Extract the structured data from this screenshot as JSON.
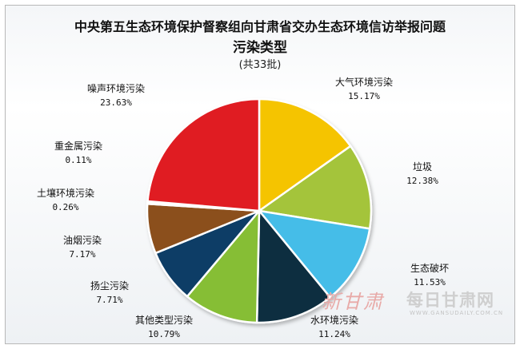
{
  "chart_data": {
    "type": "pie",
    "title": "中央第五生态环境保护督察组向甘肃省交办生态环境信访举报问题",
    "subtitle": "污染类型",
    "note": "(共33批)",
    "slices": [
      {
        "label": "大气环境污染",
        "pct_text": "15.17%",
        "value": 15.17,
        "color": "#f5c400"
      },
      {
        "label": "垃圾",
        "pct_text": "12.38%",
        "value": 12.38,
        "color": "#a4c43b"
      },
      {
        "label": "生态破坏",
        "pct_text": "11.53%",
        "value": 11.53,
        "color": "#45bde8"
      },
      {
        "label": "水环境污染",
        "pct_text": "11.24%",
        "value": 11.24,
        "color": "#0d2f40"
      },
      {
        "label": "其他类型污染",
        "pct_text": "10.79%",
        "value": 10.79,
        "color": "#86be34"
      },
      {
        "label": "扬尘污染",
        "pct_text": "7.71%",
        "value": 7.71,
        "color": "#0b3c66"
      },
      {
        "label": "油烟污染",
        "pct_text": "7.17%",
        "value": 7.17,
        "color": "#8b4f1c"
      },
      {
        "label": "土壤环境污染",
        "pct_text": "0.26%",
        "value": 0.26,
        "color": "#d93a3a"
      },
      {
        "label": "重金属污染",
        "pct_text": "0.11%",
        "value": 0.11,
        "color": "#c01818"
      },
      {
        "label": "噪声环境污染",
        "pct_text": "23.63%",
        "value": 23.63,
        "color": "#e01b22"
      }
    ]
  },
  "watermark": {
    "brand_cn": "新甘肃",
    "brand2_cn": "每日甘肃网",
    "url": "WWW.GANSUDAILY.COM.CN"
  }
}
